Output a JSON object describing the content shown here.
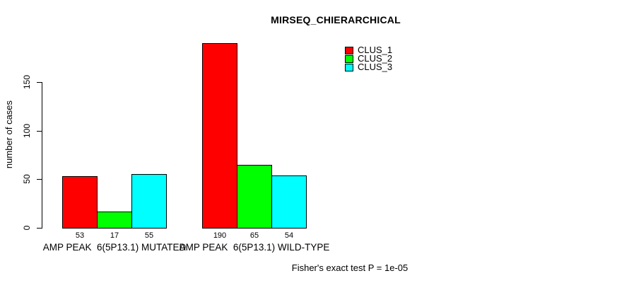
{
  "chart_data": {
    "type": "bar",
    "title": "MIRSEQ_CHIERARCHICAL",
    "xlabel": "",
    "ylabel": "number of cases",
    "ylim": [
      0,
      150
    ],
    "yticks": [
      0,
      50,
      100,
      150
    ],
    "grid": false,
    "legend_position": "top-right-inside",
    "categories": [
      "AMP PEAK  6(5P13.1) MUTATED",
      "AMP PEAK  6(5P13.1) WILD-TYPE"
    ],
    "series": [
      {
        "name": "CLUS_1",
        "color": "#FF0000",
        "values": [
          53,
          190
        ]
      },
      {
        "name": "CLUS_2",
        "color": "#00FF00",
        "values": [
          17,
          65
        ]
      },
      {
        "name": "CLUS_3",
        "color": "#00FFFF",
        "values": [
          55,
          54
        ]
      }
    ],
    "bar_value_labels": [
      [
        "53",
        "17",
        "55"
      ],
      [
        "190",
        "65",
        "54"
      ]
    ],
    "annotation": "Fisher's exact test P = 1e-05"
  },
  "colors": {
    "background": "#FFFFFF",
    "text": "#000000",
    "bar_border": "#000000",
    "clus_1": "#FF0000",
    "clus_2": "#00FF00",
    "clus_3": "#00FFFF"
  }
}
